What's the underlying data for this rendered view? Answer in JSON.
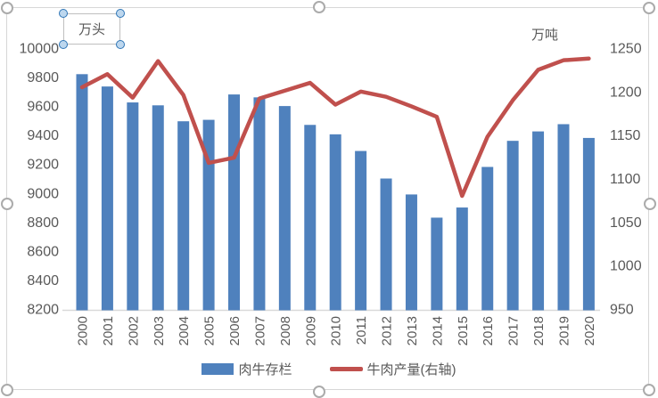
{
  "chart_data": {
    "type": "combo",
    "title": "",
    "grid": false,
    "categories": [
      "2000",
      "2001",
      "2002",
      "2003",
      "2004",
      "2005",
      "2006",
      "2007",
      "2008",
      "2009",
      "2010",
      "2011",
      "2012",
      "2013",
      "2014",
      "2015",
      "2016",
      "2017",
      "2018",
      "2019",
      "2020"
    ],
    "series": [
      {
        "name": "肉牛存栏",
        "type": "bar",
        "axis": "left",
        "color": "#4F81BD",
        "values": [
          9820,
          9735,
          9625,
          9605,
          9495,
          9505,
          9680,
          9660,
          9600,
          9470,
          9405,
          9290,
          9100,
          8990,
          8830,
          8900,
          9180,
          9360,
          9425,
          9475,
          9380
        ]
      },
      {
        "name": "牛肉产量(右轴)",
        "type": "line",
        "axis": "right",
        "color": "#C0504D",
        "values": [
          1205,
          1220,
          1193,
          1235,
          1196,
          1118,
          1124,
          1192,
          1201,
          1210,
          1185,
          1200,
          1194,
          1183,
          1171,
          1080,
          1148,
          1190,
          1225,
          1236,
          1238
        ]
      }
    ],
    "left_axis": {
      "title": "万头",
      "ticks": [
        10000,
        9800,
        9600,
        9400,
        9200,
        9000,
        8800,
        8600,
        8400,
        8200
      ],
      "range": [
        8200,
        10000
      ]
    },
    "right_axis": {
      "title": "万吨",
      "ticks": [
        1250,
        1200,
        1150,
        1100,
        1050,
        1000,
        950
      ],
      "range": [
        950,
        1250
      ]
    },
    "legend": {
      "position": "bottom",
      "entries": [
        "肉牛存栏",
        "牛肉产量(右轴)"
      ]
    }
  },
  "ui": {
    "chart_selected": true,
    "left_unit_textbox_selected": true,
    "colors": {
      "axis_text": "#595959",
      "axis_line": "#D9D9D9",
      "chart_border": "#D7D7D7",
      "handle_border": "#ABABAB",
      "textbox_handle_fill": "#BDD7EE",
      "textbox_handle_border": "#2E75B6",
      "background": "#FFFFFF"
    }
  }
}
